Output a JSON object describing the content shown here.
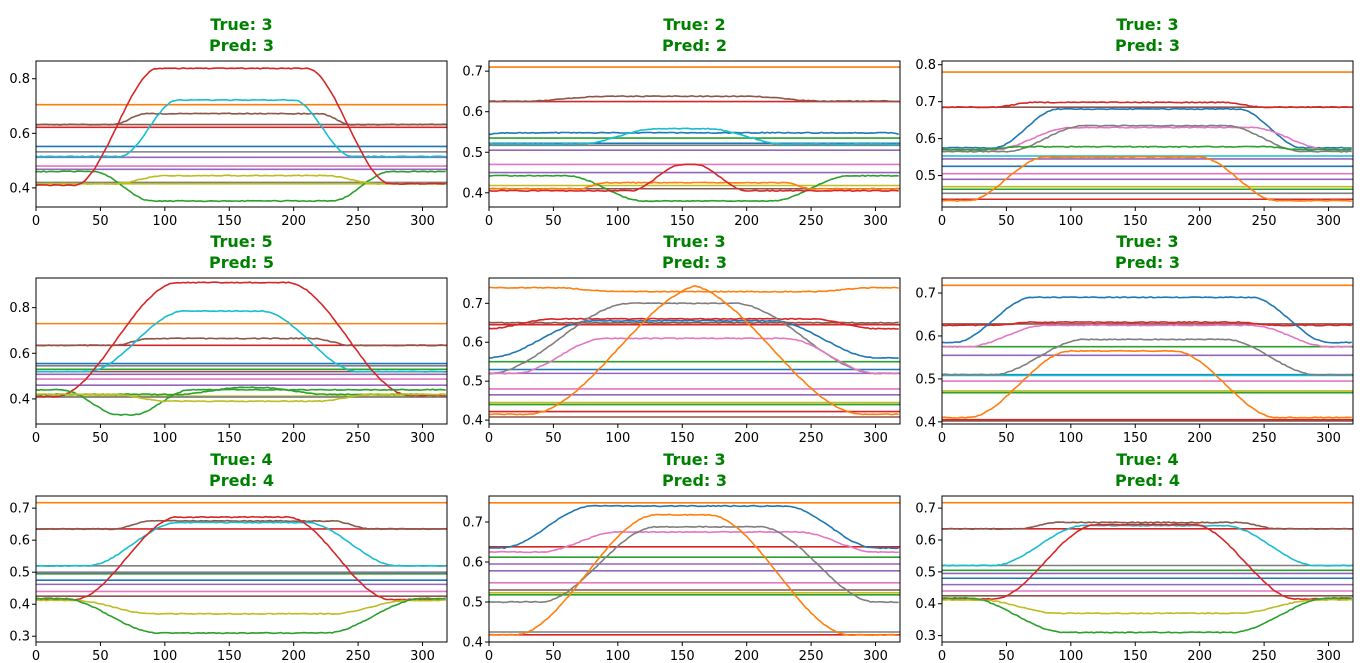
{
  "title_color": "#008000",
  "palette": [
    "#1f77b4",
    "#ff7f0e",
    "#2ca02c",
    "#d62728",
    "#9467bd",
    "#8c564b",
    "#e377c2",
    "#7f7f7f",
    "#bcbd22",
    "#17becf"
  ],
  "chart_data": [
    {
      "type": "line",
      "title_lines": [
        "True: 3",
        "Pred: 3"
      ],
      "xlim": [
        0,
        319
      ],
      "ylim": [
        0.33,
        0.865
      ],
      "xticks": [
        0,
        50,
        100,
        150,
        200,
        250,
        300
      ],
      "yticks": [
        0.4,
        0.6,
        0.8
      ],
      "flat": [
        [
          "#ff7f0e",
          0.705
        ],
        [
          "#8c564b",
          0.632
        ],
        [
          "#d62728",
          0.622
        ],
        [
          "#1f77b4",
          0.552
        ],
        [
          "#7f7f7f",
          0.532
        ],
        [
          "#9467bd",
          0.512
        ],
        [
          "#e377c2",
          0.48
        ],
        [
          "#9467bd",
          0.468
        ],
        [
          "#7f7f7f",
          0.42
        ],
        [
          "#bcbd22",
          0.415
        ]
      ],
      "dyn": [
        {
          "color": "#8c564b",
          "base": 0.632,
          "peak": 0.672,
          "s": 60,
          "e": 245,
          "r": 25
        },
        {
          "color": "#2ca02c",
          "base": 0.46,
          "peak": 0.352,
          "s": 45,
          "e": 275,
          "r": 45
        },
        {
          "color": "#bcbd22",
          "base": 0.415,
          "peak": 0.445,
          "s": 60,
          "e": 265,
          "r": 40
        },
        {
          "color": "#17becf",
          "base": 0.515,
          "peak": 0.722,
          "s": 65,
          "e": 245,
          "r": 45
        },
        {
          "color": "#d62728",
          "base": 0.41,
          "peak": 0.838,
          "s": 30,
          "e": 275,
          "r": 65,
          "tail": 0.415
        }
      ]
    },
    {
      "type": "line",
      "title_lines": [
        "True: 2",
        "Pred: 2"
      ],
      "xlim": [
        0,
        319
      ],
      "ylim": [
        0.365,
        0.725
      ],
      "xticks": [
        0,
        50,
        100,
        150,
        200,
        250,
        300
      ],
      "yticks": [
        0.4,
        0.5,
        0.6,
        0.7
      ],
      "flat": [
        [
          "#ff7f0e",
          0.71
        ],
        [
          "#d62728",
          0.625
        ],
        [
          "#2ca02c",
          0.535
        ],
        [
          "#1f77b4",
          0.522
        ],
        [
          "#9467bd",
          0.505
        ],
        [
          "#7f7f7f",
          0.517
        ],
        [
          "#e377c2",
          0.47
        ],
        [
          "#9467bd",
          0.45
        ],
        [
          "#8c564b",
          0.41
        ],
        [
          "#bcbd22",
          0.418
        ]
      ],
      "dyn": [
        {
          "color": "#1f77b4",
          "base": 0.545,
          "peak": 0.548,
          "s": 0,
          "e": 319,
          "r": 10
        },
        {
          "color": "#8c564b",
          "base": 0.626,
          "peak": 0.638,
          "s": 30,
          "e": 260,
          "r": 60
        },
        {
          "color": "#17becf",
          "base": 0.52,
          "peak": 0.558,
          "s": 70,
          "e": 230,
          "r": 60
        },
        {
          "color": "#2ca02c",
          "base": 0.442,
          "peak": 0.38,
          "s": 60,
          "e": 280,
          "r": 60
        },
        {
          "color": "#ff7f0e",
          "base": 0.41,
          "peak": 0.425,
          "s": 70,
          "e": 250,
          "r": 20
        },
        {
          "color": "#d62728",
          "base": 0.405,
          "peak": 0.47,
          "s": 110,
          "e": 200,
          "r": 40
        }
      ]
    },
    {
      "type": "line",
      "title_lines": [
        "True: 3",
        "Pred: 3"
      ],
      "xlim": [
        0,
        319
      ],
      "ylim": [
        0.415,
        0.81
      ],
      "xticks": [
        0,
        50,
        100,
        150,
        200,
        250,
        300
      ],
      "yticks": [
        0.5,
        0.6,
        0.7,
        0.8
      ],
      "flat": [
        [
          "#ff7f0e",
          0.78
        ],
        [
          "#8c564b",
          0.685
        ],
        [
          "#9467bd",
          0.545
        ],
        [
          "#17becf",
          0.553
        ],
        [
          "#1f77b4",
          0.525
        ],
        [
          "#e377c2",
          0.505
        ],
        [
          "#9467bd",
          0.49
        ],
        [
          "#bcbd22",
          0.47
        ],
        [
          "#2ca02c",
          0.463
        ],
        [
          "#7f7f7f",
          0.452
        ],
        [
          "#d62728",
          0.436
        ]
      ],
      "dyn": [
        {
          "color": "#d62728",
          "base": 0.685,
          "peak": 0.698,
          "s": 40,
          "e": 250,
          "r": 30
        },
        {
          "color": "#1f77b4",
          "base": 0.575,
          "peak": 0.68,
          "s": 40,
          "e": 280,
          "r": 50
        },
        {
          "color": "#e377c2",
          "base": 0.57,
          "peak": 0.63,
          "s": 40,
          "e": 300,
          "r": 60
        },
        {
          "color": "#7f7f7f",
          "base": 0.565,
          "peak": 0.635,
          "s": 50,
          "e": 280,
          "r": 60
        },
        {
          "color": "#2ca02c",
          "base": 0.57,
          "peak": 0.578,
          "s": 30,
          "e": 280,
          "r": 30
        },
        {
          "color": "#ff7f0e",
          "base": 0.432,
          "peak": 0.55,
          "s": 20,
          "e": 260,
          "r": 60,
          "tail": 0.432
        }
      ]
    },
    {
      "type": "line",
      "title_lines": [
        "True: 5",
        "Pred: 5"
      ],
      "xlim": [
        0,
        319
      ],
      "ylim": [
        0.29,
        0.93
      ],
      "xticks": [
        0,
        50,
        100,
        150,
        200,
        250,
        300
      ],
      "yticks": [
        0.4,
        0.6,
        0.8
      ],
      "flat": [
        [
          "#ff7f0e",
          0.73
        ],
        [
          "#d62728",
          0.635
        ],
        [
          "#1f77b4",
          0.555
        ],
        [
          "#7f7f7f",
          0.545
        ],
        [
          "#2ca02c",
          0.53
        ],
        [
          "#8c564b",
          0.52
        ],
        [
          "#9467bd",
          0.508
        ],
        [
          "#e377c2",
          0.487
        ],
        [
          "#9467bd",
          0.46
        ],
        [
          "#bcbd22",
          0.412
        ],
        [
          "#7f7f7f",
          0.408
        ]
      ],
      "dyn": [
        {
          "color": "#8c564b",
          "base": 0.635,
          "peak": 0.665,
          "s": 60,
          "e": 245,
          "r": 30
        },
        {
          "color": "#17becf",
          "base": 0.52,
          "peak": 0.785,
          "s": 40,
          "e": 250,
          "r": 75
        },
        {
          "color": "#d62728",
          "base": 0.41,
          "peak": 0.91,
          "s": 15,
          "e": 290,
          "r": 95,
          "tail": 0.415
        },
        {
          "color": "#2ca02c",
          "base": 0.42,
          "peak": 0.45,
          "s": 110,
          "e": 225,
          "r": 50
        },
        {
          "color": "#2ca02c",
          "base": 0.44,
          "peak": 0.33,
          "s": 20,
          "e": 120,
          "r": 45
        },
        {
          "color": "#bcbd22",
          "base": 0.42,
          "peak": 0.39,
          "s": 60,
          "e": 260,
          "r": 40
        }
      ]
    },
    {
      "type": "line",
      "title_lines": [
        "True: 3",
        "Pred: 3"
      ],
      "xlim": [
        0,
        319
      ],
      "ylim": [
        0.39,
        0.765
      ],
      "xticks": [
        0,
        50,
        100,
        150,
        200,
        250,
        300
      ],
      "yticks": [
        0.4,
        0.5,
        0.6,
        0.7
      ],
      "flat": [
        [
          "#d62728",
          0.645
        ],
        [
          "#2ca02c",
          0.55
        ],
        [
          "#1f77b4",
          0.53
        ],
        [
          "#9467bd",
          0.52
        ],
        [
          "#e377c2",
          0.48
        ],
        [
          "#9467bd",
          0.465
        ],
        [
          "#bcbd22",
          0.445
        ],
        [
          "#2ca02c",
          0.44
        ],
        [
          "#d62728",
          0.422
        ],
        [
          "#8c564b",
          0.408
        ]
      ],
      "dyn": [
        {
          "color": "#ff7f0e",
          "base": 0.74,
          "peak": 0.73,
          "s": 50,
          "e": 300,
          "r": 50
        },
        {
          "color": "#1f77b4",
          "base": 0.56,
          "peak": 0.655,
          "s": 0,
          "e": 300,
          "r": 80
        },
        {
          "color": "#8c564b",
          "base": 0.65,
          "peak": 0.65,
          "s": 0,
          "e": 319,
          "r": 10
        },
        {
          "color": "#d62728",
          "base": 0.635,
          "peak": 0.66,
          "s": 0,
          "e": 300,
          "r": 50
        },
        {
          "color": "#7f7f7f",
          "base": 0.52,
          "peak": 0.7,
          "s": 0,
          "e": 300,
          "r": 110
        },
        {
          "color": "#e377c2",
          "base": 0.52,
          "peak": 0.61,
          "s": 20,
          "e": 300,
          "r": 70
        },
        {
          "color": "#ff7f0e",
          "base": 0.415,
          "peak": 0.75,
          "s": 30,
          "e": 290,
          "r": 140,
          "tail": 0.415
        }
      ]
    },
    {
      "type": "line",
      "title_lines": [
        "True: 3",
        "Pred: 3"
      ],
      "xlim": [
        0,
        319
      ],
      "ylim": [
        0.395,
        0.735
      ],
      "xticks": [
        0,
        50,
        100,
        150,
        200,
        250,
        300
      ],
      "yticks": [
        0.4,
        0.5,
        0.6,
        0.7
      ],
      "flat": [
        [
          "#ff7f0e",
          0.718
        ],
        [
          "#8c564b",
          0.628
        ],
        [
          "#2ca02c",
          0.575
        ],
        [
          "#9467bd",
          0.555
        ],
        [
          "#1f77b4",
          0.51
        ],
        [
          "#17becf",
          0.508
        ],
        [
          "#e377c2",
          0.495
        ],
        [
          "#bcbd22",
          0.472
        ],
        [
          "#2ca02c",
          0.468
        ],
        [
          "#d62728",
          0.405
        ],
        [
          "#8c564b",
          0.402
        ]
      ],
      "dyn": [
        {
          "color": "#d62728",
          "base": 0.625,
          "peak": 0.632,
          "s": 40,
          "e": 260,
          "r": 30
        },
        {
          "color": "#1f77b4",
          "base": 0.585,
          "peak": 0.69,
          "s": 10,
          "e": 300,
          "r": 60
        },
        {
          "color": "#e377c2",
          "base": 0.575,
          "peak": 0.625,
          "s": 20,
          "e": 300,
          "r": 60
        },
        {
          "color": "#7f7f7f",
          "base": 0.51,
          "peak": 0.592,
          "s": 40,
          "e": 290,
          "r": 70
        },
        {
          "color": "#ff7f0e",
          "base": 0.41,
          "peak": 0.565,
          "s": 20,
          "e": 260,
          "r": 80,
          "tail": 0.41
        }
      ]
    },
    {
      "type": "line",
      "title_lines": [
        "True: 4",
        "Pred: 4"
      ],
      "xlim": [
        0,
        319
      ],
      "ylim": [
        0.282,
        0.738
      ],
      "xticks": [
        0,
        50,
        100,
        150,
        200,
        250,
        300
      ],
      "yticks": [
        0.3,
        0.4,
        0.5,
        0.6,
        0.7
      ],
      "flat": [
        [
          "#ff7f0e",
          0.717
        ],
        [
          "#d62728",
          0.635
        ],
        [
          "#7f7f7f",
          0.52
        ],
        [
          "#9467bd",
          0.5
        ],
        [
          "#2ca02c",
          0.495
        ],
        [
          "#1f77b4",
          0.475
        ],
        [
          "#9467bd",
          0.462
        ],
        [
          "#e377c2",
          0.44
        ],
        [
          "#8c564b",
          0.425
        ]
      ],
      "dyn": [
        {
          "color": "#8c564b",
          "base": 0.635,
          "peak": 0.66,
          "s": 60,
          "e": 260,
          "r": 30
        },
        {
          "color": "#17becf",
          "base": 0.52,
          "peak": 0.655,
          "s": 40,
          "e": 280,
          "r": 70
        },
        {
          "color": "#d62728",
          "base": 0.415,
          "peak": 0.672,
          "s": 30,
          "e": 275,
          "r": 80,
          "tail": 0.415
        },
        {
          "color": "#bcbd22",
          "base": 0.412,
          "peak": 0.37,
          "s": 30,
          "e": 290,
          "r": 60
        },
        {
          "color": "#2ca02c",
          "base": 0.418,
          "peak": 0.31,
          "s": 20,
          "e": 300,
          "r": 75
        }
      ]
    },
    {
      "type": "line",
      "title_lines": [
        "True: 3",
        "Pred: 3"
      ],
      "xlim": [
        0,
        319
      ],
      "ylim": [
        0.4,
        0.765
      ],
      "xticks": [
        0,
        50,
        100,
        150,
        200,
        250,
        300
      ],
      "yticks": [
        0.4,
        0.5,
        0.6,
        0.7
      ],
      "flat": [
        [
          "#ff7f0e",
          0.748
        ],
        [
          "#d62728",
          0.638
        ],
        [
          "#2ca02c",
          0.612
        ],
        [
          "#9467bd",
          0.595
        ],
        [
          "#9467bd",
          0.578
        ],
        [
          "#e377c2",
          0.548
        ],
        [
          "#8c564b",
          0.53
        ],
        [
          "#bcbd22",
          0.523
        ],
        [
          "#2ca02c",
          0.518
        ],
        [
          "#7f7f7f",
          0.425
        ],
        [
          "#d62728",
          0.418
        ]
      ],
      "dyn": [
        {
          "color": "#1f77b4",
          "base": 0.635,
          "peak": 0.74,
          "s": 10,
          "e": 300,
          "r": 70
        },
        {
          "color": "#e377c2",
          "base": 0.625,
          "peak": 0.675,
          "s": 40,
          "e": 300,
          "r": 60
        },
        {
          "color": "#7f7f7f",
          "base": 0.5,
          "peak": 0.688,
          "s": 40,
          "e": 300,
          "r": 90
        },
        {
          "color": "#ff7f0e",
          "base": 0.418,
          "peak": 0.718,
          "s": 20,
          "e": 280,
          "r": 110,
          "tail": 0.418
        }
      ]
    },
    {
      "type": "line",
      "title_lines": [
        "True: 4",
        "Pred: 4"
      ],
      "xlim": [
        0,
        319
      ],
      "ylim": [
        0.28,
        0.738
      ],
      "xticks": [
        0,
        50,
        100,
        150,
        200,
        250,
        300
      ],
      "yticks": [
        0.3,
        0.4,
        0.5,
        0.6,
        0.7
      ],
      "flat": [
        [
          "#ff7f0e",
          0.717
        ],
        [
          "#d62728",
          0.635
        ],
        [
          "#7f7f7f",
          0.52
        ],
        [
          "#2ca02c",
          0.505
        ],
        [
          "#9467bd",
          0.495
        ],
        [
          "#1f77b4",
          0.48
        ],
        [
          "#9467bd",
          0.46
        ],
        [
          "#e377c2",
          0.44
        ],
        [
          "#8c564b",
          0.425
        ]
      ],
      "dyn": [
        {
          "color": "#8c564b",
          "base": 0.635,
          "peak": 0.655,
          "s": 60,
          "e": 260,
          "r": 30
        },
        {
          "color": "#17becf",
          "base": 0.52,
          "peak": 0.645,
          "s": 40,
          "e": 290,
          "r": 70
        },
        {
          "color": "#d62728",
          "base": 0.415,
          "peak": 0.648,
          "s": 40,
          "e": 275,
          "r": 80,
          "tail": 0.415
        },
        {
          "color": "#bcbd22",
          "base": 0.412,
          "peak": 0.37,
          "s": 30,
          "e": 290,
          "r": 60
        },
        {
          "color": "#2ca02c",
          "base": 0.418,
          "peak": 0.31,
          "s": 20,
          "e": 300,
          "r": 75
        }
      ]
    }
  ]
}
